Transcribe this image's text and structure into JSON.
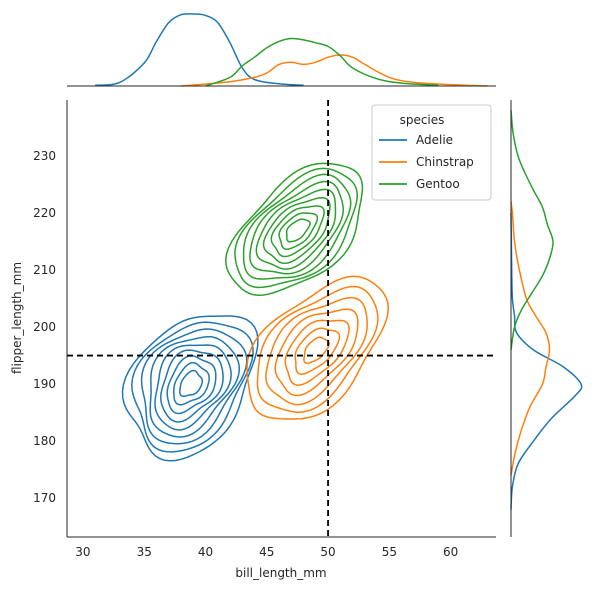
{
  "chart_data": {
    "type": "jointplot-kde",
    "xlabel": "bill_length_mm",
    "ylabel": "flipper_length_mm",
    "xlim": [
      28.7,
      63.7
    ],
    "ylim": [
      163.2,
      239.8
    ],
    "xticks": [
      30,
      35,
      40,
      45,
      50,
      55,
      60
    ],
    "yticks": [
      170,
      180,
      190,
      200,
      210,
      220,
      230
    ],
    "grid": false,
    "reference_lines": {
      "vertical_x": 50,
      "horizontal_y": 195,
      "style": "dashed",
      "color": "#000000"
    },
    "legend": {
      "title": "species",
      "placement": "top-right",
      "entries": [
        "Adelie",
        "Chinstrap",
        "Gentoo"
      ]
    },
    "series": [
      {
        "name": "Adelie",
        "color": "#1f77b4",
        "center": [
          38.8,
          190.0
        ],
        "spread": [
          2.7,
          6.5
        ],
        "corr": 0.32,
        "levels": 9,
        "marginal_x": [
          [
            31,
            0.01
          ],
          [
            33,
            0.05
          ],
          [
            35,
            0.32
          ],
          [
            36,
            0.62
          ],
          [
            37,
            0.88
          ],
          [
            38,
            0.99
          ],
          [
            39,
            1.0
          ],
          [
            40,
            0.98
          ],
          [
            41,
            0.88
          ],
          [
            42,
            0.6
          ],
          [
            43,
            0.25
          ],
          [
            44,
            0.09
          ],
          [
            46,
            0.03
          ],
          [
            48,
            0.01
          ]
        ],
        "marginal_y": [
          [
            168,
            0.0
          ],
          [
            172,
            0.02
          ],
          [
            176,
            0.1
          ],
          [
            180,
            0.32
          ],
          [
            184,
            0.58
          ],
          [
            188,
            0.92
          ],
          [
            190,
            1.0
          ],
          [
            193,
            0.75
          ],
          [
            196,
            0.32
          ],
          [
            199,
            0.08
          ],
          [
            202,
            0.05
          ],
          [
            205,
            0.02
          ],
          [
            210,
            0.01
          ],
          [
            220,
            0.0
          ]
        ]
      },
      {
        "name": "Chinstrap",
        "color": "#ff7f0e",
        "center": [
          49.0,
          196.0
        ],
        "spread": [
          3.3,
          7.0
        ],
        "corr": 0.62,
        "levels": 7,
        "marginal_x": [
          [
            38,
            0.0
          ],
          [
            42,
            0.06
          ],
          [
            44,
            0.12
          ],
          [
            45,
            0.18
          ],
          [
            46,
            0.3
          ],
          [
            47,
            0.33
          ],
          [
            48,
            0.3
          ],
          [
            49,
            0.33
          ],
          [
            50,
            0.4
          ],
          [
            51,
            0.43
          ],
          [
            52,
            0.4
          ],
          [
            53,
            0.3
          ],
          [
            55,
            0.12
          ],
          [
            57,
            0.05
          ],
          [
            60,
            0.02
          ],
          [
            63,
            0.0
          ]
        ],
        "marginal_y": [
          [
            174,
            0.0
          ],
          [
            178,
            0.06
          ],
          [
            182,
            0.15
          ],
          [
            186,
            0.27
          ],
          [
            190,
            0.45
          ],
          [
            193,
            0.5
          ],
          [
            196,
            0.55
          ],
          [
            199,
            0.5
          ],
          [
            202,
            0.35
          ],
          [
            205,
            0.22
          ],
          [
            210,
            0.12
          ],
          [
            215,
            0.05
          ],
          [
            220,
            0.02
          ],
          [
            222,
            0.0
          ]
        ]
      },
      {
        "name": "Gentoo",
        "color": "#2ca02c",
        "center": [
          47.5,
          217.0
        ],
        "spread": [
          3.1,
          6.2
        ],
        "corr": 0.65,
        "levels": 9,
        "marginal_x": [
          [
            40,
            0.0
          ],
          [
            42,
            0.12
          ],
          [
            43,
            0.28
          ],
          [
            44,
            0.4
          ],
          [
            45,
            0.53
          ],
          [
            46,
            0.62
          ],
          [
            47,
            0.66
          ],
          [
            48,
            0.64
          ],
          [
            49,
            0.6
          ],
          [
            50,
            0.55
          ],
          [
            51,
            0.42
          ],
          [
            52,
            0.25
          ],
          [
            54,
            0.1
          ],
          [
            56,
            0.04
          ],
          [
            59,
            0.01
          ]
        ],
        "marginal_y": [
          [
            196,
            0.0
          ],
          [
            200,
            0.05
          ],
          [
            203,
            0.15
          ],
          [
            206,
            0.3
          ],
          [
            209,
            0.45
          ],
          [
            212,
            0.55
          ],
          [
            215,
            0.6
          ],
          [
            218,
            0.52
          ],
          [
            221,
            0.45
          ],
          [
            224,
            0.32
          ],
          [
            227,
            0.2
          ],
          [
            230,
            0.1
          ],
          [
            234,
            0.03
          ],
          [
            238,
            0.0
          ]
        ]
      }
    ]
  }
}
